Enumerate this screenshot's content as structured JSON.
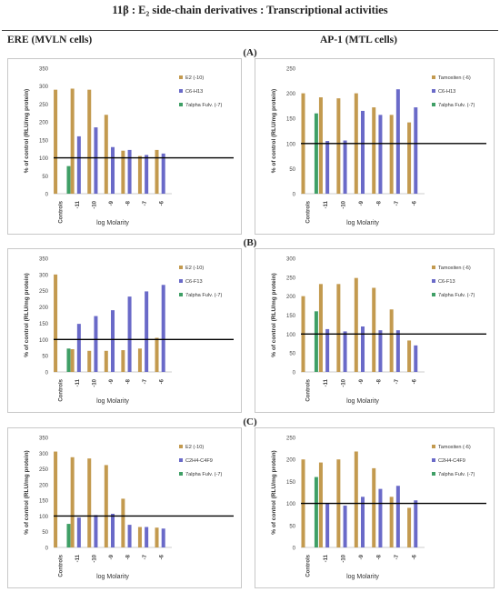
{
  "title": "11β : E₂ side-chain    derivatives : Transcriptional activities",
  "columns": {
    "left": "ERE (MVLN cells)",
    "right": "AP-1 (MTL cells)"
  },
  "panel_labels": [
    "(A)",
    "(B)",
    "(C)"
  ],
  "colors": {
    "series1": "#c39a4f",
    "series2": "#6a6ac8",
    "series3": "#3f9f66",
    "reference_line": "#000000"
  },
  "chart_data": [
    {
      "type": "bar",
      "panel": "A",
      "cell": "ERE (MVLN cells)",
      "categories": [
        "Controls",
        "-11",
        "-10",
        "-9",
        "-8",
        "-7",
        "-6"
      ],
      "series": [
        {
          "name": "E2 (-10)",
          "values": [
            290,
            293,
            290,
            220,
            120,
            105,
            122
          ]
        },
        {
          "name": "C6-H13",
          "values": [
            null,
            160,
            185,
            130,
            122,
            108,
            112
          ]
        },
        {
          "name": "7alpha Fulv. (-7)",
          "values": [
            77,
            null,
            null,
            null,
            null,
            null,
            null
          ]
        }
      ],
      "xlabel": "log Molarity",
      "ylabel": "% of control (RLU/mg protein)",
      "ylim": [
        0,
        350
      ],
      "yticks": [
        0,
        50,
        100,
        150,
        200,
        250,
        300,
        350
      ],
      "reference_line": 100,
      "legend": "right",
      "grid": false
    },
    {
      "type": "bar",
      "panel": "A",
      "cell": "AP-1 (MTL cells)",
      "categories": [
        "Controls",
        "-11",
        "-10",
        "-9",
        "-8",
        "-7",
        "-6"
      ],
      "series": [
        {
          "name": "Tamoxiten (-6)",
          "values": [
            200,
            192,
            190,
            200,
            172,
            157,
            142
          ]
        },
        {
          "name": "C6-H13",
          "values": [
            null,
            105,
            106,
            165,
            157,
            208,
            172
          ]
        },
        {
          "name": "7alpha Fulv. (-7)",
          "values": [
            160,
            null,
            null,
            null,
            null,
            null,
            null
          ]
        }
      ],
      "xlabel": "log Molarity",
      "ylabel": "% of control (RLU/mg protein)",
      "ylim": [
        0,
        250
      ],
      "yticks": [
        0,
        50,
        100,
        150,
        200,
        250
      ],
      "reference_line": 100,
      "legend": "right",
      "grid": false
    },
    {
      "type": "bar",
      "panel": "B",
      "cell": "ERE (MVLN cells)",
      "categories": [
        "Controls",
        "-11",
        "-10",
        "-9",
        "-8",
        "-7",
        "-6"
      ],
      "series": [
        {
          "name": "E2 (-10)",
          "values": [
            300,
            70,
            65,
            65,
            67,
            72,
            105
          ]
        },
        {
          "name": "C6-F13",
          "values": [
            null,
            148,
            172,
            190,
            232,
            248,
            268
          ]
        },
        {
          "name": "7alpha Fulv. (-7)",
          "values": [
            72,
            null,
            null,
            null,
            null,
            null,
            null
          ]
        }
      ],
      "xlabel": "log Molarity",
      "ylabel": "% of control (RLU/mg protein)",
      "ylim": [
        0,
        350
      ],
      "yticks": [
        0,
        50,
        100,
        150,
        200,
        250,
        300,
        350
      ],
      "reference_line": 100,
      "legend": "right",
      "grid": false
    },
    {
      "type": "bar",
      "panel": "B",
      "cell": "AP-1 (MTL cells)",
      "categories": [
        "Controls",
        "-11",
        "-10",
        "-9",
        "-8",
        "-7",
        "-6"
      ],
      "series": [
        {
          "name": "Tamoxiten (-6)",
          "values": [
            200,
            232,
            232,
            248,
            222,
            165,
            83
          ]
        },
        {
          "name": "C6-F13",
          "values": [
            null,
            113,
            107,
            120,
            110,
            110,
            70
          ]
        },
        {
          "name": "7alpha Fulv. (-7)",
          "values": [
            160,
            null,
            null,
            null,
            null,
            null,
            null
          ]
        }
      ],
      "xlabel": "log Molarity",
      "ylabel": "% of control (RLU/mg protein)",
      "ylim": [
        0,
        300
      ],
      "yticks": [
        0,
        50,
        100,
        150,
        200,
        250,
        300
      ],
      "reference_line": 100,
      "legend": "right",
      "grid": false
    },
    {
      "type": "bar",
      "panel": "C",
      "cell": "ERE (MVLN cells)",
      "categories": [
        "Controls",
        "-11",
        "-10",
        "-9",
        "-8",
        "-7",
        "-6"
      ],
      "series": [
        {
          "name": "E2 (-10)",
          "values": [
            305,
            287,
            283,
            262,
            155,
            65,
            63
          ]
        },
        {
          "name": "C2H4-C4F9",
          "values": [
            null,
            95,
            103,
            107,
            72,
            65,
            60
          ]
        },
        {
          "name": "7alpha Fulv. (-7)",
          "values": [
            75,
            null,
            null,
            null,
            null,
            null,
            null
          ]
        }
      ],
      "xlabel": "log Molarity",
      "ylabel": "% of control (RLU/mg protein)",
      "ylim": [
        0,
        350
      ],
      "yticks": [
        0,
        50,
        100,
        150,
        200,
        250,
        300,
        350
      ],
      "reference_line": 100,
      "legend": "right",
      "grid": false
    },
    {
      "type": "bar",
      "panel": "C",
      "cell": "AP-1 (MTL cells)",
      "categories": [
        "Controls",
        "-11",
        "-10",
        "-9",
        "-8",
        "-7",
        "-6"
      ],
      "series": [
        {
          "name": "Tamoxiten (-6)",
          "values": [
            200,
            193,
            200,
            218,
            180,
            115,
            90
          ]
        },
        {
          "name": "C2H4-C4F9",
          "values": [
            null,
            100,
            95,
            115,
            133,
            140,
            107
          ]
        },
        {
          "name": "7alpha Fulv. (-7)",
          "values": [
            160,
            null,
            null,
            null,
            null,
            null,
            null
          ]
        }
      ],
      "xlabel": "log Molarity",
      "ylabel": "% of control (RLU/mg protein)",
      "ylim": [
        0,
        250
      ],
      "yticks": [
        0,
        50,
        100,
        150,
        200,
        250
      ],
      "reference_line": 100,
      "legend": "right",
      "grid": false
    }
  ]
}
